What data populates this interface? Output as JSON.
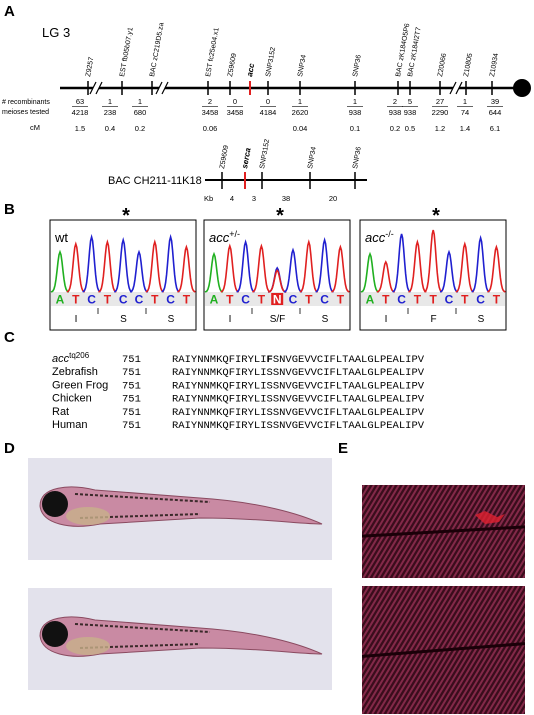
{
  "panel_labels": {
    "a": "A",
    "b": "B",
    "c": "C",
    "d": "D",
    "e": "E"
  },
  "genetic_map": {
    "linkage_group": "LG 3",
    "markers": [
      "Z9257",
      "EST fb05b07.y1",
      "BAC zC219D5.za",
      "EST fc25e04.x1",
      "Z59609",
      "acc",
      "SNP3152",
      "SNP34",
      "SNP36",
      "BAC zK184O5P6",
      "BAC zK184I2T7",
      "Z20066",
      "Z10805",
      "Z10934"
    ],
    "row_labels": {
      "recombinants": "# recombinants",
      "meioses": "meioses tested",
      "cm": "cM"
    },
    "intervals": [
      {
        "recombinants": "63",
        "meioses": "4218",
        "cm": "1.5"
      },
      {
        "recombinants": "1",
        "meioses": "238",
        "cm": "0.4"
      },
      {
        "recombinants": "1",
        "meioses": "680",
        "cm": "0.2"
      },
      {
        "recombinants": "2",
        "meioses": "3458",
        "cm": "0.06"
      },
      {
        "recombinants": "0",
        "meioses": "3458"
      },
      {
        "recombinants": "0",
        "meioses": "4184"
      },
      {
        "recombinants": "1",
        "meioses": "2620",
        "cm": "0.04"
      },
      {
        "recombinants": "1",
        "meioses": "938",
        "cm": "0.1"
      },
      {
        "recombinants": "2",
        "meioses": "938",
        "cm": "0.2"
      },
      {
        "recombinants": "5",
        "meioses": "938",
        "cm": "0.5"
      },
      {
        "recombinants": "27",
        "meioses": "2290",
        "cm": "1.2"
      },
      {
        "recombinants": "1",
        "meioses": "74",
        "cm": "1.4"
      },
      {
        "recombinants": "39",
        "meioses": "644",
        "cm": "6.1"
      }
    ]
  },
  "bac_map": {
    "title": "BAC CH211-11K18",
    "markers": [
      "Z59609",
      "serca",
      "SNP3152",
      "SNP34",
      "SNP36"
    ],
    "unit": "Kb",
    "distances": [
      "4",
      "3",
      "38",
      "20"
    ]
  },
  "chromatograms": [
    {
      "genotype": "wt",
      "marker": "*",
      "bases": [
        "A",
        "T",
        "C",
        "T",
        "C",
        "C",
        "T",
        "C",
        "T"
      ],
      "amino_acids": [
        "I",
        "S",
        "S"
      ]
    },
    {
      "genotype": "acc",
      "superscript": "+/-",
      "marker": "*",
      "bases": [
        "A",
        "T",
        "C",
        "T",
        "N",
        "C",
        "T",
        "C",
        "T"
      ],
      "amino_acids": [
        "I",
        "S/F",
        "S"
      ]
    },
    {
      "genotype": "acc",
      "superscript": "-/-",
      "marker": "*",
      "bases": [
        "A",
        "T",
        "C",
        "T",
        "T",
        "C",
        "T",
        "C",
        "T"
      ],
      "amino_acids": [
        "I",
        "F",
        "S"
      ]
    }
  ],
  "alignment": {
    "rows": [
      {
        "species": "acc",
        "superscript": "tq206",
        "start": "751",
        "sequence_before": "RAIYNNMKQFIRYLI",
        "mutation": "F",
        "sequence_after": "SNVGEVVCIFLTAALGLPEALIPV"
      },
      {
        "species": "Zebrafish",
        "start": "751",
        "sequence": "RAIYNNMKQFIRYLISSNVGEVVCIFLTAALGLPEALIPV"
      },
      {
        "species": "Green Frog",
        "start": "751",
        "sequence": "RAIYNNMKQFIRYLISSNVGEVVCIFLTAALGLPEALIPV"
      },
      {
        "species": "Chicken",
        "start": "751",
        "sequence": "RAIYNNMKQFIRYLISSNVGEVVCIFLTAALGLPEALIPV"
      },
      {
        "species": "Rat",
        "start": "751",
        "sequence": "RAIYNNMKQFIRYLISSNVGEVVCIFLTAALGLPEALIPV"
      },
      {
        "species": "Human",
        "start": "751",
        "sequence": "RAIYNNMKQFIRYLISSNVGEVVCIFLTAALGLPEALIPV"
      }
    ]
  }
}
